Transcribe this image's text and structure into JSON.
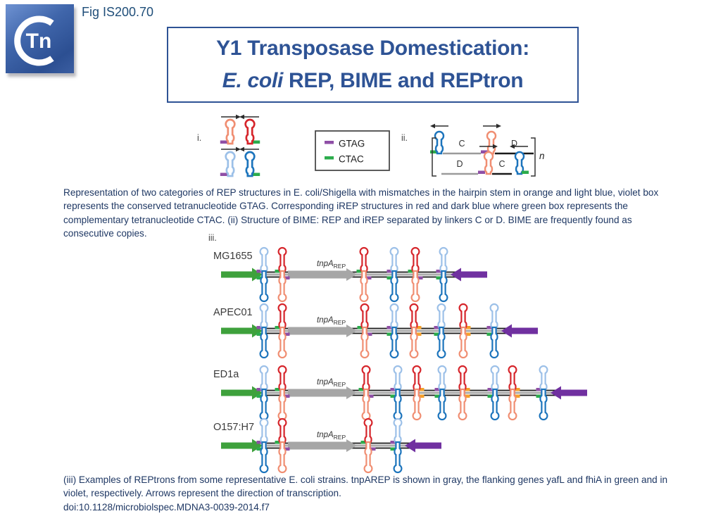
{
  "page": {
    "fig_label": "Fig IS200.70",
    "logo_text": "Tn"
  },
  "title": {
    "line1": "Y1 Transposase Domestication:",
    "line2_italic": "E. coli",
    "line2_rest": " REP, BIME and REPtron"
  },
  "colors": {
    "rep": "#F08E72",
    "irep": "#D6252B",
    "rep_blue": "#9CC0E8",
    "irep_blue": "#1C74BC",
    "gtag_box": "#8F4FA6",
    "ctac_box": "#2CAC4C",
    "alt_box": "#F5A02A",
    "gene_green": "#3EA13C",
    "gene_violet": "#7030A0",
    "tnpa_gray": "#A6A6A6",
    "track": "#1A1A1A",
    "linker_gray": "#9B9B9B",
    "text_blue": "#1F3864",
    "label_gray": "#3B3B3B"
  },
  "panel_i": {
    "label": "i.",
    "hairpins": [
      {
        "name": "REP",
        "color": "rep",
        "box": "gtag_box",
        "arrow": "right"
      },
      {
        "name": "iREP",
        "color": "irep",
        "box": "ctac_box",
        "arrow": "left"
      },
      {
        "name": "REP",
        "color": "rep_blue",
        "box": "gtag_box",
        "arrow": "right"
      },
      {
        "name": "iREP",
        "color": "irep_blue",
        "box": "ctac_box",
        "arrow": "left"
      }
    ]
  },
  "legend": {
    "items": [
      {
        "box": "gtag_box",
        "label": "GTAG"
      },
      {
        "box": "ctac_box",
        "label": "CTAC"
      }
    ]
  },
  "panel_ii": {
    "label": "ii.",
    "top_linkers": [
      "C",
      "D"
    ],
    "bottom_linkers": [
      "D",
      "C"
    ],
    "repeat_label": "n"
  },
  "caption_i_ii": "Representation of two categories of REP structures in E. coli/Shigella with mismatches in the hairpin stem in orange and light blue, violet box represents the conserved tetranucleotide GTAG. Corresponding iREP structures in red and dark blue where green box represents the complementary tetranucleotide CTAC. (ii) Structure of BIME: REP and iREP separated by linkers C or D. BIME are frequently found as consecutive copies.",
  "panel_iii": {
    "label": "iii.",
    "gene": {
      "name": "tnpA",
      "sub": "REP"
    },
    "rows": [
      {
        "strain": "MG1655",
        "left": [
          "B",
          "R"
        ],
        "right": [
          "R",
          "B",
          "R",
          "B"
        ]
      },
      {
        "strain": "APEC01",
        "left": [
          "B",
          "R"
        ],
        "right": [
          "R",
          "B",
          "Ro",
          "B",
          "Ro",
          "B"
        ]
      },
      {
        "strain": "ED1a",
        "left": [
          "B",
          "R"
        ],
        "right": [
          "R",
          "B",
          "Ro",
          "B",
          "Ro",
          "B",
          "Ro",
          "B"
        ]
      },
      {
        "strain": "O157:H7",
        "left": [
          "B",
          "R"
        ],
        "right": [
          "R",
          "B"
        ]
      }
    ]
  },
  "caption_iii": {
    "text": "(iii) Examples of REPtrons from some representative E. coli strains. tnpAREP is shown in gray, the flanking genes yafL and fhiA in green and in violet, respectively. Arrows represent the direction of transcription.",
    "doi": "doi:10.1128/microbiolspec.MDNA3-0039-2014.f7"
  }
}
